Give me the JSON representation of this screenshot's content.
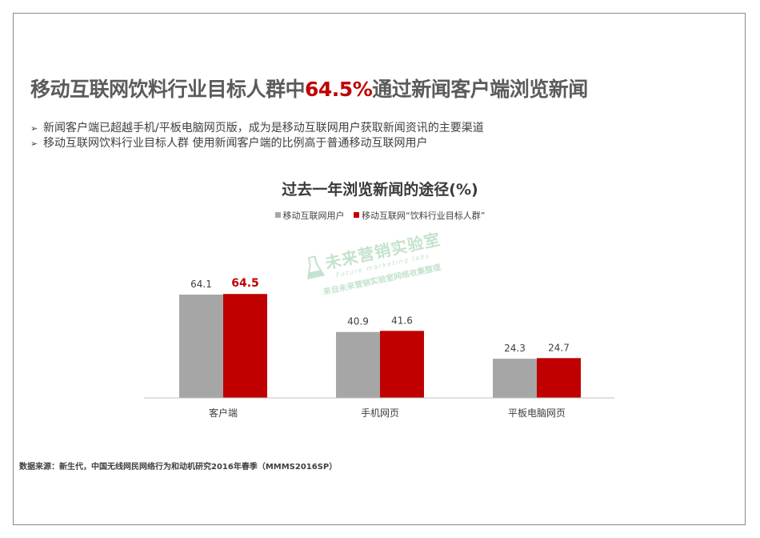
{
  "headline": {
    "before": "移动互联网饮料行业目标人群中",
    "highlight": "64.5%",
    "after": "通过新闻客户端浏览新闻"
  },
  "bullets": [
    "新闻客户端已超越手机/平板电脑网页版，成为是移动互联网用户获取新闻资讯的主要渠道",
    "移动互联网饮料行业目标人群 使用新闻客户端的比例高于普通移动互联网用户"
  ],
  "colors": {
    "headline_highlight": "#c00000",
    "series_gray": "#a6a6a6",
    "series_red": "#c00000"
  },
  "chart_data": {
    "type": "bar",
    "title": "过去一年浏览新闻的途径(%)",
    "categories": [
      "客户端",
      "手机网页",
      "平板电脑网页"
    ],
    "series": [
      {
        "name": "移动互联网用户",
        "values": [
          64.1,
          40.9,
          24.3
        ],
        "color": "#a6a6a6"
      },
      {
        "name": "移动互联网“饮料行业目标人群”",
        "values": [
          64.5,
          41.6,
          24.7
        ],
        "color": "#c00000"
      }
    ],
    "value_labels": [
      [
        "64.1",
        "40.9",
        "24.3"
      ],
      [
        "64.5",
        "41.6",
        "24.7"
      ]
    ],
    "ylim": [
      0,
      100
    ],
    "legend": "top",
    "grid": false
  },
  "watermark": {
    "name": "未来营销实验室",
    "sub": "Future marketing labs",
    "line": "来自未来营销实验室网络收集整理"
  },
  "source": "数据来源：新生代，中国无线网民网络行为和动机研究2016年春季（MMMS2016SP）"
}
